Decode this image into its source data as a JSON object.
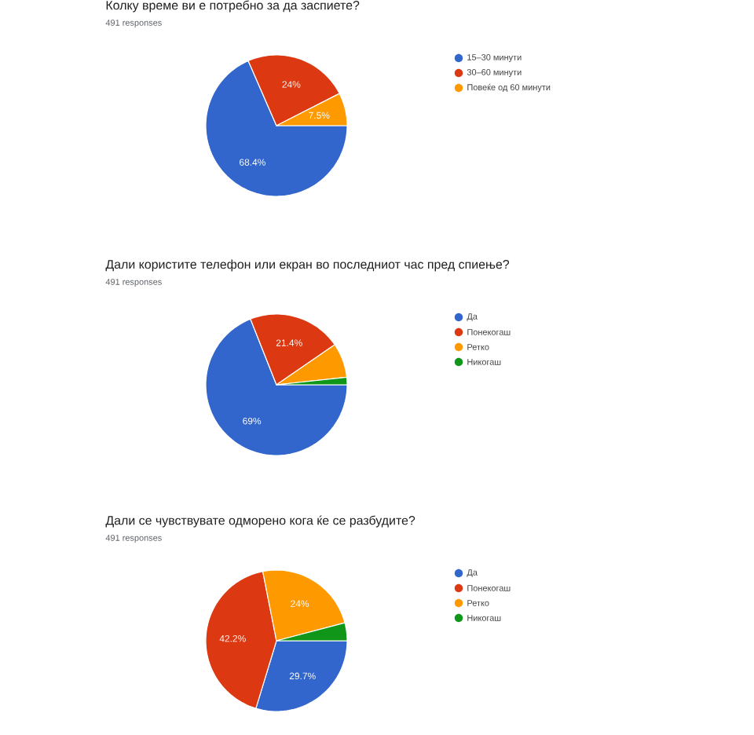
{
  "chart_data": [
    {
      "type": "pie",
      "title": "Колку време ви е потребно за да заспиете?",
      "subtitle": "491 responses",
      "categories": [
        "15–30 минути",
        "30–60 минути",
        "Повеќе од 60 минути"
      ],
      "values": [
        68.4,
        24,
        7.5
      ],
      "colors": [
        "#3366cc",
        "#dc3912",
        "#ff9900"
      ],
      "value_labels": [
        "68.4%",
        "24%",
        "7.5%"
      ],
      "legend": "right"
    },
    {
      "type": "pie",
      "title": "Дали користите телефон или екран во последниот час пред спиење?",
      "subtitle": "491 responses",
      "categories": [
        "Да",
        "Понекогаш",
        "Ретко",
        "Никогаш"
      ],
      "values": [
        69,
        21.4,
        7.9,
        1.7
      ],
      "colors": [
        "#3366cc",
        "#dc3912",
        "#ff9900",
        "#109618"
      ],
      "value_labels": [
        "69%",
        "21.4%",
        null,
        null
      ],
      "legend": "right"
    },
    {
      "type": "pie",
      "title": "Дали се чувствувате одморено кога ќе се разбудите?",
      "subtitle": "491 responses",
      "categories": [
        "Да",
        "Понекогаш",
        "Ретко",
        "Никогаш"
      ],
      "values": [
        29.7,
        42.2,
        24,
        4.1
      ],
      "colors": [
        "#3366cc",
        "#dc3912",
        "#ff9900",
        "#109618"
      ],
      "value_labels": [
        "29.7%",
        "42.2%",
        "24%",
        null
      ],
      "legend": "right"
    }
  ]
}
